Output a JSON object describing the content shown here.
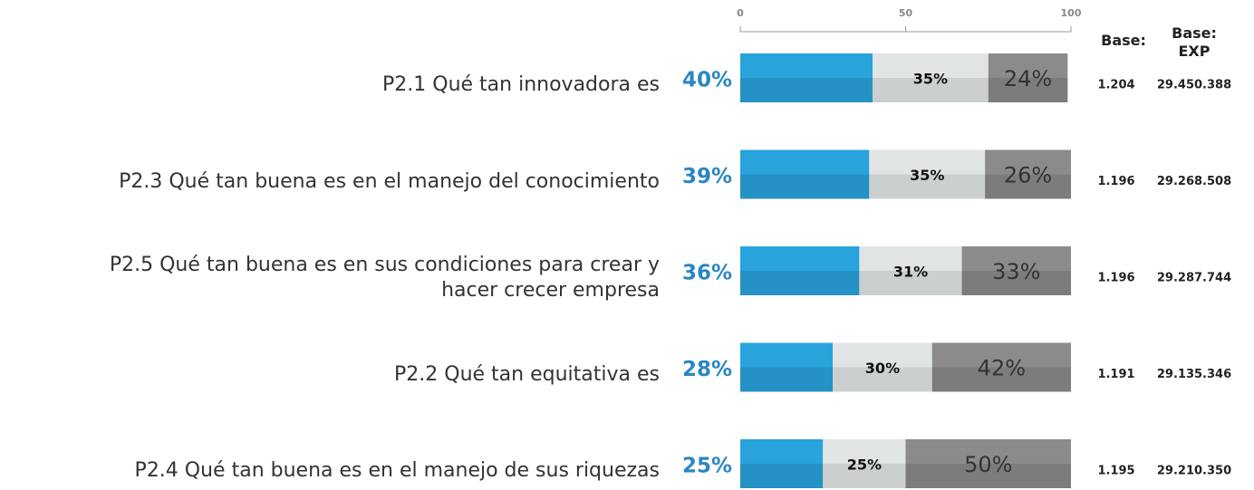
{
  "chart_data": {
    "type": "stacked-bar",
    "orientation": "horizontal",
    "categories": [
      "P2.1 Qué tan innovadora es",
      "P2.3 Qué tan buena es en el manejo del conocimiento",
      "P2.5 Qué tan buena es en sus condiciones para crear y\nhacer crecer empresa",
      "P2.2 Qué tan equitativa es",
      "P2.4 Qué tan buena es en el manejo de sus riquezas"
    ],
    "series": [
      {
        "color": "#29a3dc",
        "values": [
          40,
          39,
          36,
          28,
          25
        ],
        "value_labels": [
          "40%",
          "39%",
          "36%",
          "28%",
          "25%"
        ]
      },
      {
        "color": "#e1e4e5",
        "values": [
          35,
          35,
          31,
          30,
          25
        ],
        "value_labels": [
          "35%",
          "35%",
          "31%",
          "30%",
          "25%"
        ]
      },
      {
        "color": "#8b8b8b",
        "values": [
          24,
          26,
          33,
          42,
          50
        ],
        "value_labels": [
          "24%",
          "26%",
          "33%",
          "42%",
          "50%"
        ]
      }
    ],
    "xlim": [
      0,
      100
    ],
    "xticks": [
      0,
      50,
      100
    ],
    "columns": [
      {
        "title": "Base:",
        "values": [
          "1.204",
          "1.196",
          "1.196",
          "1.191",
          "1.195"
        ]
      },
      {
        "title": "Base:\nEXP",
        "values": [
          "29.450.388",
          "29.268.508",
          "29.287.744",
          "29.135.346",
          "29.210.350"
        ]
      }
    ]
  }
}
